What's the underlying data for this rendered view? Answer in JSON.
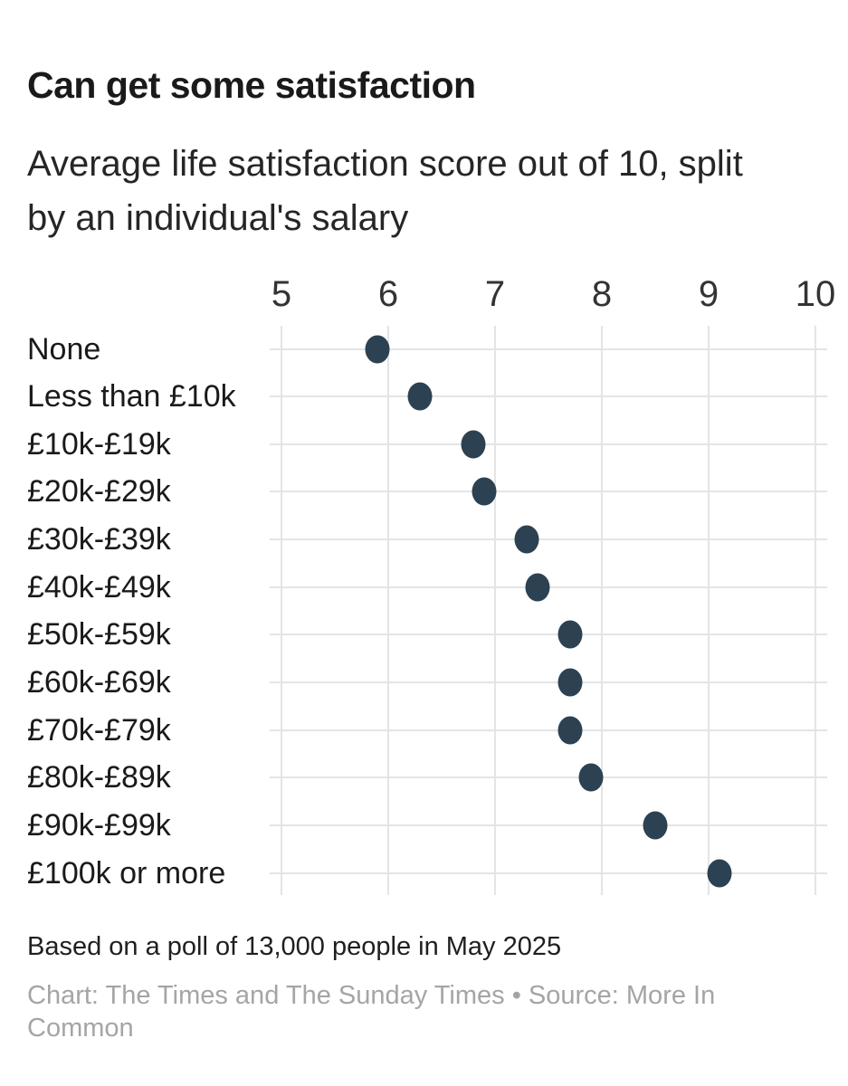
{
  "header": {
    "title": "Can get some satisfaction",
    "subtitle": "Average life satisfaction score out of 10, split\nby an individual's salary"
  },
  "chart_data": {
    "type": "scatter",
    "variant": "horizontal-dot-plot",
    "title": "Can get some satisfaction",
    "subtitle": "Average life satisfaction score out of 10, split by an individual's salary",
    "categories": [
      "None",
      "Less than £10k",
      "£10k-£19k",
      "£20k-£29k",
      "£30k-£39k",
      "£40k-£49k",
      "£50k-£59k",
      "£60k-£69k",
      "£70k-£79k",
      "£80k-£89k",
      "£90k-£99k",
      "£100k or more"
    ],
    "values": [
      5.9,
      6.3,
      6.8,
      6.9,
      7.3,
      7.4,
      7.7,
      7.7,
      7.7,
      7.9,
      8.5,
      9.1
    ],
    "x_ticks": [
      5,
      6,
      7,
      8,
      9,
      10
    ],
    "xlim": [
      5,
      10
    ],
    "xlabel": "",
    "ylabel": "",
    "grid": true,
    "legend": "none",
    "axis_position": "top",
    "colors": {
      "dot": "#2c4152",
      "gridline": "#e4e4e4",
      "tick_label": "#333333",
      "category_label": "#1a1a1a"
    }
  },
  "footer": {
    "notes": "Based on a poll of 13,000 people in May 2025",
    "credits": "Chart: The Times and The Sunday Times • Source: More In Common"
  }
}
